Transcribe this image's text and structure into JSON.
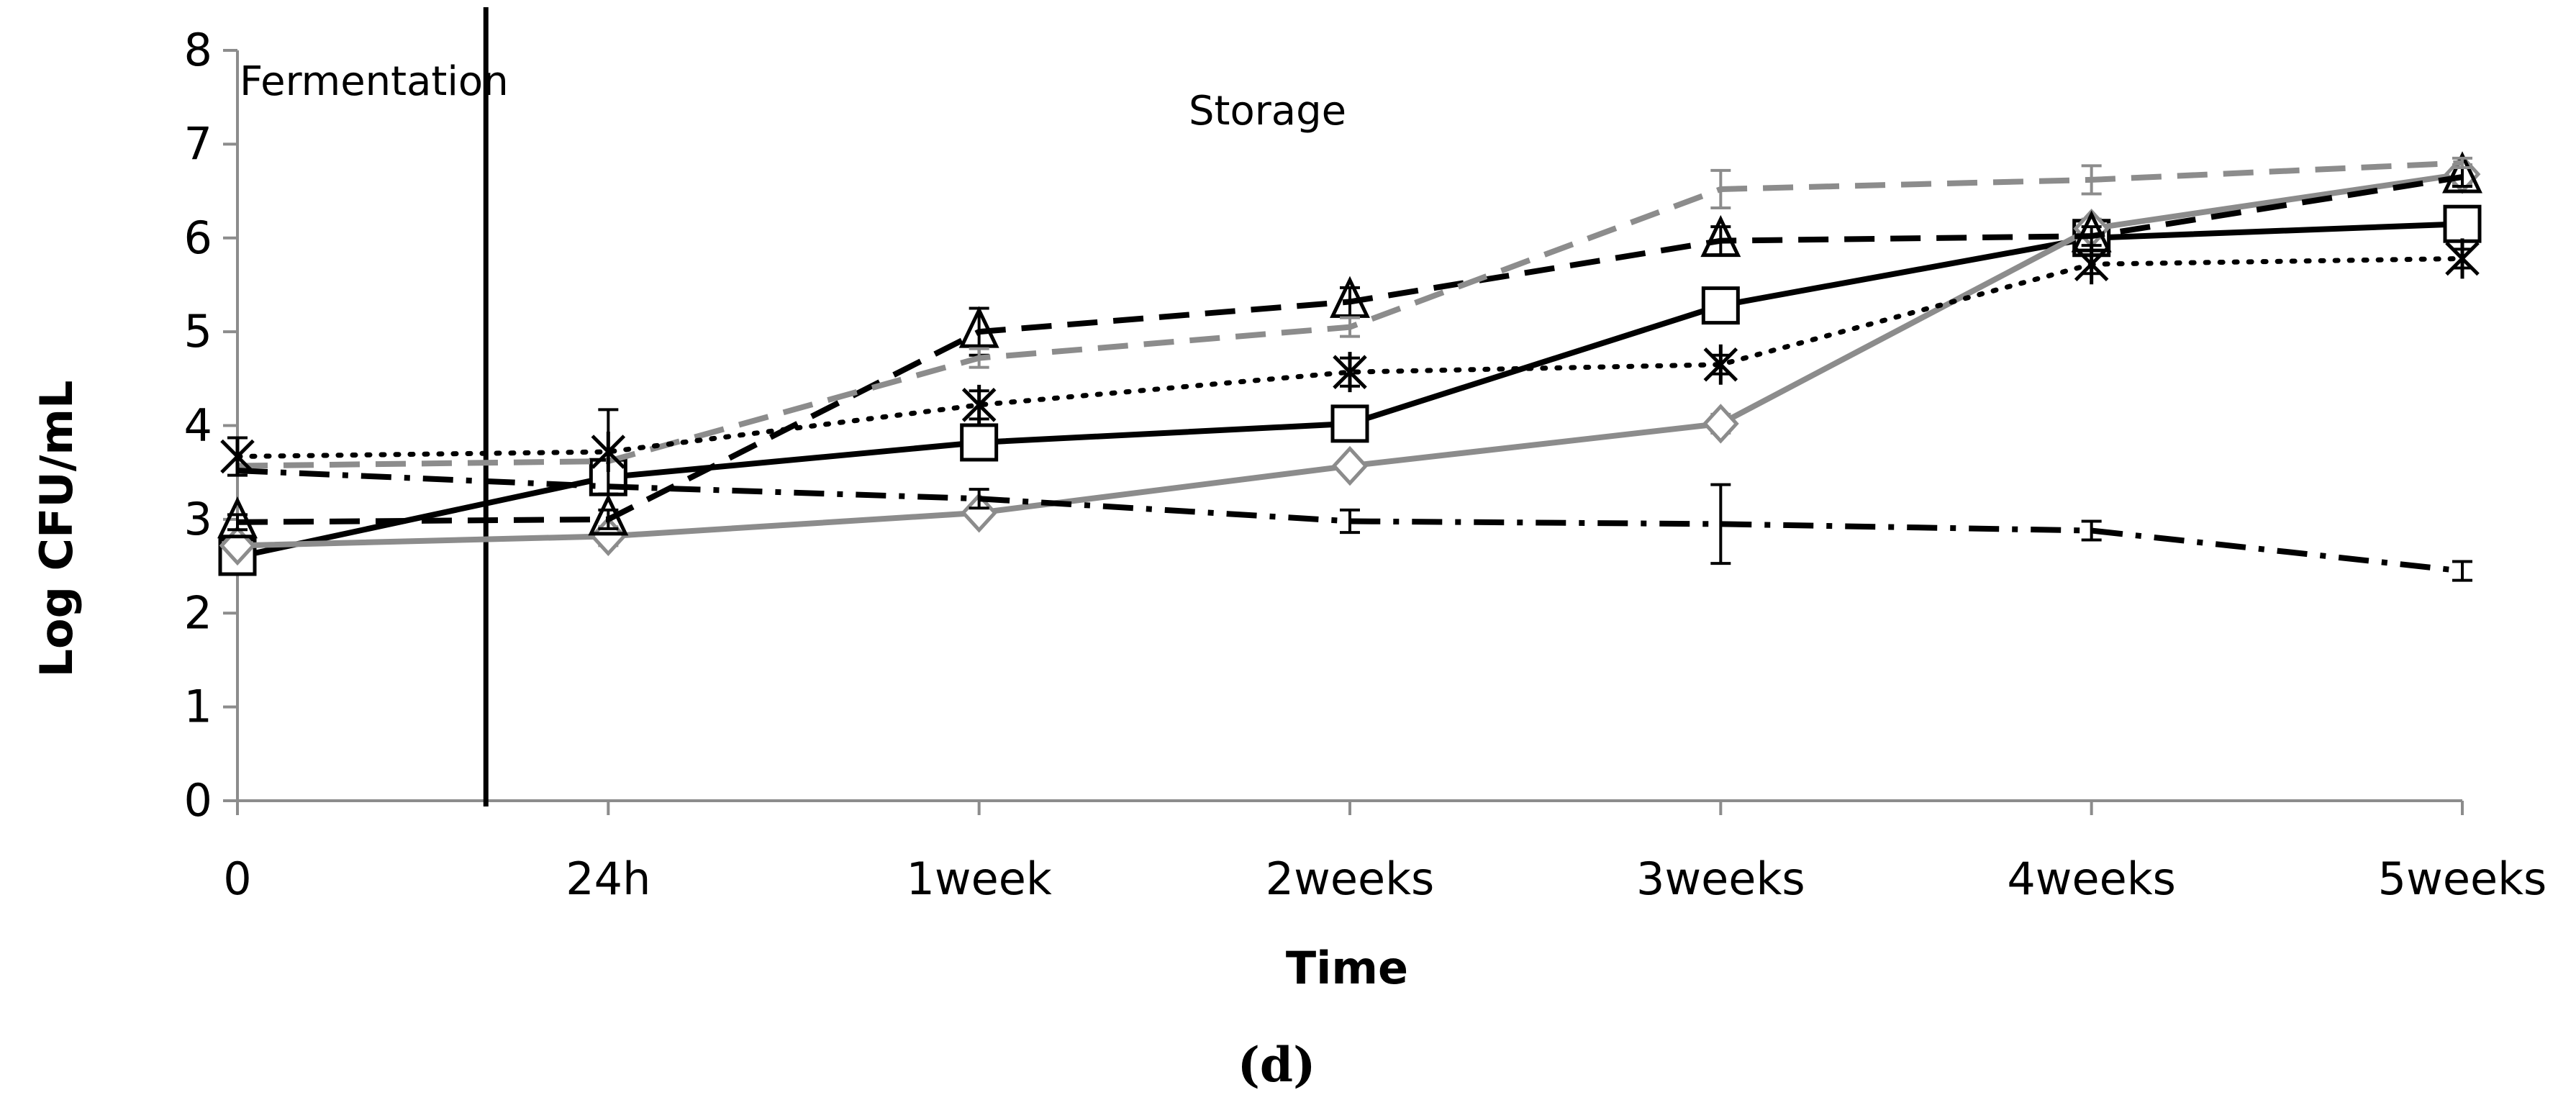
{
  "chart_data": {
    "type": "line",
    "title": "",
    "xlabel": "Time",
    "ylabel": "Log CFU/mL",
    "ylim": [
      0,
      8
    ],
    "yticks": [
      "0",
      "1",
      "2",
      "3",
      "4",
      "5",
      "6",
      "7",
      "8"
    ],
    "categories": [
      "0",
      "24h",
      "1week",
      "2weeks",
      "3weeks",
      "4weeks",
      "5weeks"
    ],
    "annotations": {
      "fermentation": "Fermentation",
      "storage": "Storage",
      "divider_position": 0.67
    },
    "caption": "(d)",
    "colors": {
      "black": "#000000",
      "gray": "#8c8c8c",
      "axis": "#8c8c8c"
    },
    "series": [
      {
        "name": "series-solid-black-square",
        "marker": "square",
        "color": "#000000",
        "dash": "solid",
        "values": [
          2.6,
          3.45,
          3.82,
          4.02,
          5.28,
          6.0,
          6.15
        ],
        "errors": [
          0.08,
          0.12,
          0.1,
          0.1,
          0.12,
          0.1,
          0.1
        ]
      },
      {
        "name": "series-solid-gray-diamond",
        "marker": "diamond",
        "color": "#8c8c8c",
        "dash": "solid",
        "values": [
          2.72,
          2.82,
          3.07,
          3.57,
          4.02,
          6.1,
          6.68
        ],
        "errors": [
          0.05,
          0.1,
          0.05,
          0.05,
          0.1,
          0.1,
          0.1
        ]
      },
      {
        "name": "series-dashed-black-triangle",
        "marker": "triangle",
        "color": "#000000",
        "dash": "long",
        "values": [
          2.97,
          3.0,
          5.0,
          5.32,
          5.97,
          6.02,
          6.65
        ],
        "errors": [
          0.08,
          0.1,
          0.25,
          0.15,
          0.15,
          0.1,
          0.1
        ]
      },
      {
        "name": "series-dashed-gray-plain",
        "marker": "none",
        "color": "#8c8c8c",
        "dash": "long",
        "values": [
          3.57,
          3.62,
          4.72,
          5.05,
          6.52,
          6.62,
          6.8
        ],
        "errors": [
          0,
          0,
          0.1,
          0.1,
          0.2,
          0.15,
          0.05
        ]
      },
      {
        "name": "series-dotted-black-star",
        "marker": "star",
        "color": "#000000",
        "dash": "dotted",
        "values": [
          3.67,
          3.72,
          4.22,
          4.57,
          4.65,
          5.72,
          5.78
        ],
        "errors": [
          0.2,
          0.45,
          0.15,
          0.15,
          0.1,
          0.1,
          0.1
        ]
      },
      {
        "name": "series-dashdot-black-plain",
        "marker": "none",
        "color": "#000000",
        "dash": "dashdot",
        "values": [
          3.52,
          3.35,
          3.22,
          2.98,
          2.95,
          2.88,
          2.45
        ],
        "errors": [
          0,
          0,
          0.1,
          0.12,
          0.42,
          0.1,
          0.1
        ]
      }
    ]
  }
}
